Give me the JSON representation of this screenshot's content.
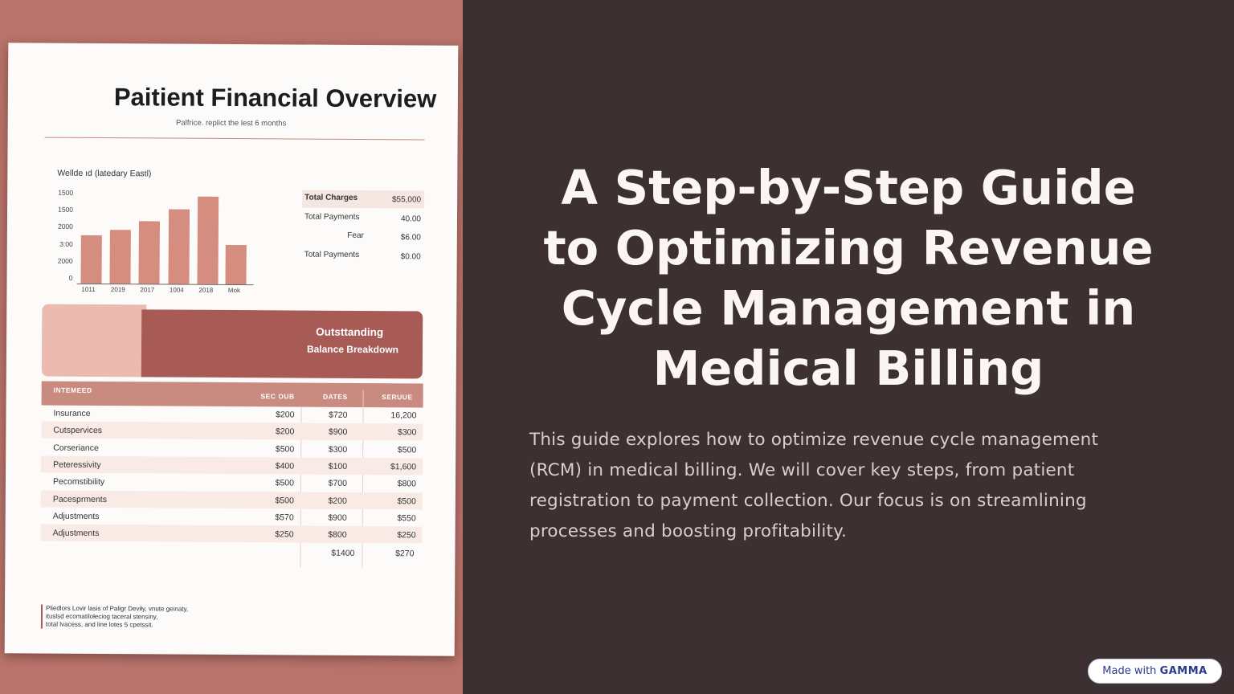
{
  "document": {
    "title": "Paitient Financial Overview",
    "subtitle": "Palfrice. replict the lest 6 months",
    "chart_title": "Wellde ıd (latedary Eastl)",
    "y_labels": [
      "1500",
      "1500",
      "2000",
      "3:00",
      "2000",
      "0"
    ],
    "x_labels": [
      "1011",
      "2019",
      "2017",
      "1004",
      "2018",
      "Mok"
    ],
    "summary": [
      [
        "Total Charges",
        "$55,000"
      ],
      [
        "Total Payments",
        "40.00"
      ],
      [
        "Fear",
        "$6.00"
      ],
      [
        "Total Payments",
        "$0.00"
      ]
    ],
    "banner": [
      "Outsttanding",
      "Balance Breakdown"
    ],
    "table": {
      "header": [
        "INTEMEED",
        "SEC OUB",
        "DATES",
        "SERUUE"
      ],
      "rows": [
        [
          "Insurance",
          "$200",
          "$720",
          "16,200"
        ],
        [
          "Cutspervices",
          "$200",
          "$900",
          "$300"
        ],
        [
          "Corseriance",
          "$500",
          "$300",
          "$500"
        ],
        [
          "Peteressivity",
          "$400",
          "$100",
          "$1,600"
        ],
        [
          "Pecomstibility",
          "$500",
          "$700",
          "$800"
        ],
        [
          "Pacesprments",
          "$500",
          "$200",
          "$500"
        ],
        [
          "Adjustments",
          "$570",
          "$900",
          "$550"
        ],
        [
          "Adjustments",
          "$250",
          "$800",
          "$250"
        ]
      ],
      "totals": [
        "$1400",
        "$270"
      ]
    },
    "footnote": [
      "Pliedlors Lovir lasis of Paligr Deviły, vnute geinaty,",
      "ituslsd ecomatilołeciog taceral stensiny,",
      "total lvacess, and line lotes 5 cpetssit."
    ]
  },
  "slide": {
    "title": "A Step-by-Step Guide to Optimizing Revenue Cycle Management in Medical Billing",
    "body": "This guide explores how to optimize revenue cycle management (RCM) in medical billing. We will cover key steps, from patient registration to payment collection. Our focus is on streamlining processes and boosting profitability."
  },
  "badge": {
    "prefix": "Made with",
    "brand": "GAMMA"
  }
}
